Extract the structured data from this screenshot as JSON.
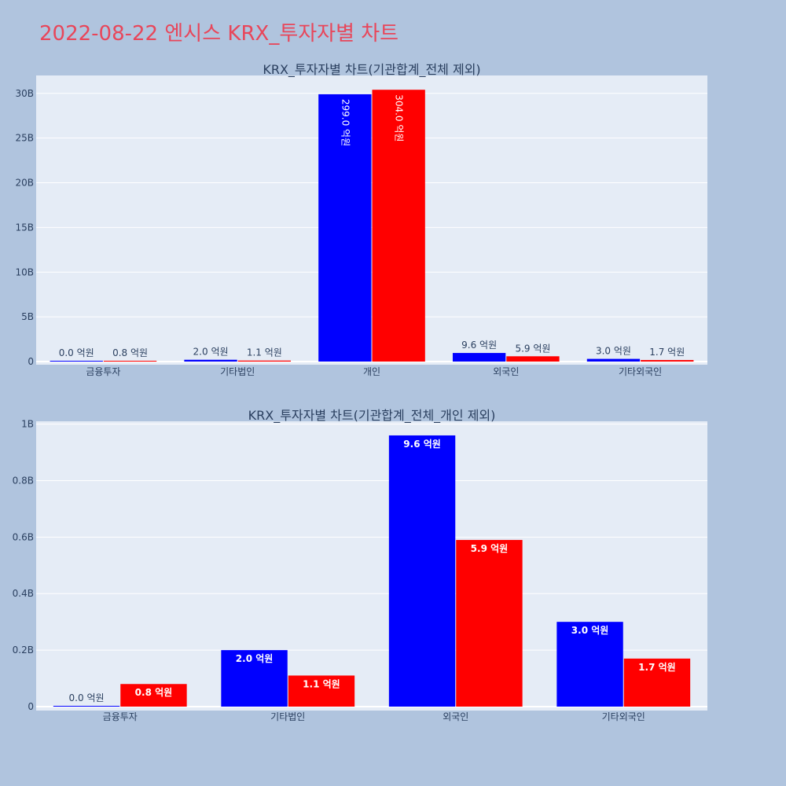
{
  "title": "2022-08-22 엔시스 KRX_투자자별 차트",
  "colors": {
    "buy": "#0000ff",
    "sell": "#ff0000",
    "title": "#e8465a",
    "plot_bg": "#e5ecf6",
    "page_bg": "#b0c4de"
  },
  "chart_data": [
    {
      "type": "bar",
      "title": "KRX_투자자별 차트(기관합계_전체 제외)",
      "categories": [
        "금융투자",
        "기타법인",
        "개인",
        "외국인",
        "기타외국인"
      ],
      "series": [
        {
          "values": [
            0,
            20000000,
            2990000000,
            96000000,
            30000000
          ],
          "labels": [
            "0.0 억원",
            "2.0 억원",
            "299.0 억원",
            "9.6 억원",
            "3.0 억원"
          ]
        },
        {
          "values": [
            8000000,
            11000000,
            3040000000,
            59000000,
            17000000
          ],
          "labels": [
            "0.8 억원",
            "1.1 억원",
            "304.0 억원",
            "5.9 억원",
            "1.7 억원"
          ]
        }
      ],
      "yticks": [
        0,
        500000000,
        1000000000,
        1500000000,
        2000000000,
        2500000000,
        3000000000
      ],
      "ytick_labels": [
        "0",
        "5B",
        "10B",
        "15B",
        "20B",
        "25B",
        "30B"
      ],
      "ylim": [
        0,
        3200000000
      ],
      "grid": true
    },
    {
      "type": "bar",
      "title": "KRX_투자자별 차트(기관합계_전체_개인 제외)",
      "categories": [
        "금융투자",
        "기타법인",
        "외국인",
        "기타외국인"
      ],
      "series": [
        {
          "values": [
            0,
            20000000,
            96000000,
            30000000
          ],
          "labels": [
            "0.0 억원",
            "2.0 억원",
            "9.6 억원",
            "3.0 억원"
          ]
        },
        {
          "values": [
            8000000,
            11000000,
            59000000,
            17000000
          ],
          "labels": [
            "0.8 억원",
            "1.1 억원",
            "5.9 억원",
            "1.7 억원"
          ]
        }
      ],
      "yticks": [
        0,
        20000000,
        40000000,
        60000000,
        80000000,
        100000000
      ],
      "ytick_labels": [
        "0",
        "0.2B",
        "0.4B",
        "0.6B",
        "0.8B",
        "1B"
      ],
      "ylim": [
        0,
        101000000
      ],
      "grid": true
    }
  ]
}
